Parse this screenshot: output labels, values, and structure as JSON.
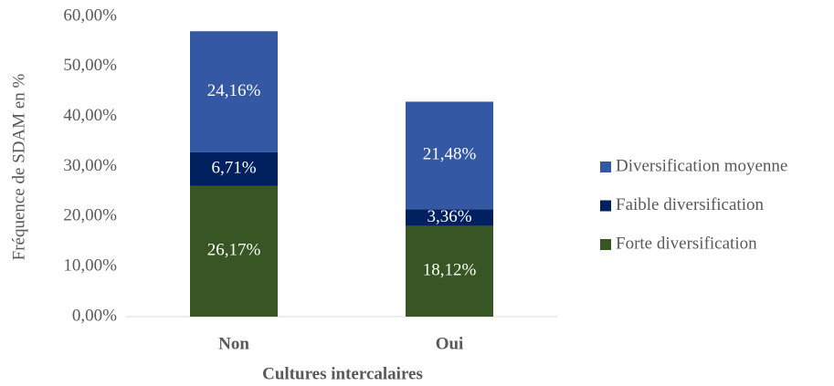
{
  "chart_data": {
    "type": "stacked_bar",
    "categories": [
      "Non",
      "Oui"
    ],
    "xlabel": "Cultures intercalaires",
    "ylabel": "Fréquence de SDAM en %",
    "series": [
      {
        "name": "Forte diversification",
        "color": "#375623",
        "values": [
          26.17,
          18.12
        ],
        "value_labels": [
          "26,17%",
          "18,12%"
        ]
      },
      {
        "name": "Faible diversification",
        "color": "#002060",
        "values": [
          6.71,
          3.36
        ],
        "value_labels": [
          "6,71%",
          "3,36%"
        ]
      },
      {
        "name": "Diversification moyenne",
        "color": "#3458a4",
        "values": [
          24.16,
          21.48
        ],
        "value_labels": [
          "24,16%",
          "21,48%"
        ]
      }
    ],
    "ylim": [
      0,
      60
    ],
    "yticks": [
      {
        "value": 0,
        "label": "0,00%"
      },
      {
        "value": 10,
        "label": "10,00%"
      },
      {
        "value": 20,
        "label": "20,00%"
      },
      {
        "value": 30,
        "label": "30,00%"
      },
      {
        "value": 40,
        "label": "40,00%"
      },
      {
        "value": 50,
        "label": "50,00%"
      },
      {
        "value": 60,
        "label": "60,00%"
      }
    ],
    "grid": false,
    "legend": "right"
  }
}
